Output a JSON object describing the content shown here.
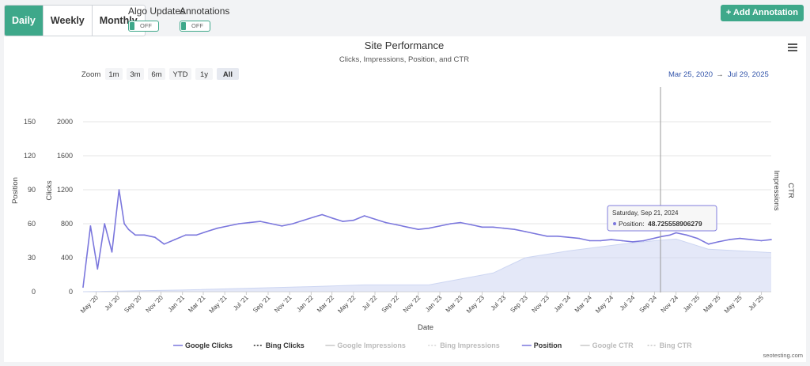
{
  "toolbar": {
    "periods": [
      "Daily",
      "Weekly",
      "Monthly"
    ],
    "active_period": "Daily",
    "algo_updates_label": "Algo Updates",
    "algo_updates_state": "OFF",
    "annotations_label": "Annotations",
    "annotations_state": "OFF",
    "add_annotation_label": "+ Add Annotation"
  },
  "range_selector": {
    "zoom_label": "Zoom",
    "buttons": [
      "1m",
      "3m",
      "6m",
      "YTD",
      "1y",
      "All"
    ],
    "active": "All",
    "from": "Mar 25, 2020",
    "arrow": "→",
    "to": "Jul 29, 2025"
  },
  "tooltip": {
    "date": "Saturday, Sep 21, 2024",
    "series_label": "Position:",
    "value": "48.7255589062 79"
  },
  "footer": {
    "credit": "seotesting.com"
  },
  "icons": {
    "menu": "hamburger-menu-icon"
  },
  "colors": {
    "accent": "#3ea88a",
    "position": "#7b77dd",
    "impressions": "#cdd6f2"
  },
  "chart_data": {
    "type": "line",
    "title": "Site Performance",
    "subtitle": "Clicks, Impressions, Position, and CTR",
    "xlabel": "Date",
    "x_ticks": [
      "May '20",
      "Jul '20",
      "Sep '20",
      "Nov '20",
      "Jan '21",
      "Mar '21",
      "May '21",
      "Jul '21",
      "Sep '21",
      "Nov '21",
      "Jan '22",
      "Mar '22",
      "May '22",
      "Jul '22",
      "Sep '22",
      "Nov '22",
      "Jan '23",
      "Mar '23",
      "May '23",
      "Jul '23",
      "Sep '23",
      "Nov '23",
      "Jan '24",
      "Mar '24",
      "May '24",
      "Jul '24",
      "Sep '24",
      "Nov '24",
      "Jan '25",
      "Mar '25",
      "May '25",
      "Jul '25"
    ],
    "x_range": [
      "2020-03-25",
      "2025-07-29"
    ],
    "y_axes": [
      {
        "label": "Position",
        "ticks": [
          0,
          30,
          60,
          90,
          120,
          150
        ],
        "range": [
          0,
          150
        ]
      },
      {
        "label": "Clicks",
        "ticks": [
          0,
          400,
          800,
          1200,
          1600,
          2000
        ],
        "range": [
          0,
          2000
        ]
      },
      {
        "label": "CTR",
        "ticks": [],
        "position": "right"
      },
      {
        "label": "Impressions",
        "ticks": [],
        "position": "right"
      }
    ],
    "legend": [
      "Google Clicks",
      "Bing Clicks",
      "Google Impressions",
      "Bing Impressions",
      "Position",
      "Google CTR",
      "Bing CTR"
    ],
    "legend_position": "bottom",
    "grid": true,
    "series": [
      {
        "name": "Position",
        "axis": "Position",
        "points": [
          [
            "2020-03-25",
            4
          ],
          [
            "2020-04-15",
            58
          ],
          [
            "2020-05-05",
            20
          ],
          [
            "2020-05-25",
            60
          ],
          [
            "2020-06-15",
            35
          ],
          [
            "2020-07-05",
            90
          ],
          [
            "2020-07-20",
            60
          ],
          [
            "2020-08-01",
            55
          ],
          [
            "2020-08-20",
            50
          ],
          [
            "2020-09-15",
            50
          ],
          [
            "2020-10-15",
            48
          ],
          [
            "2020-11-10",
            42
          ],
          [
            "2020-12-10",
            46
          ],
          [
            "2021-01-10",
            50
          ],
          [
            "2021-02-10",
            50
          ],
          [
            "2021-03-10",
            53
          ],
          [
            "2021-04-10",
            56
          ],
          [
            "2021-05-10",
            58
          ],
          [
            "2021-06-10",
            60
          ],
          [
            "2021-07-10",
            61
          ],
          [
            "2021-08-10",
            62
          ],
          [
            "2021-09-10",
            60
          ],
          [
            "2021-10-10",
            58
          ],
          [
            "2021-11-10",
            60
          ],
          [
            "2021-12-10",
            63
          ],
          [
            "2022-01-10",
            66
          ],
          [
            "2022-02-01",
            68
          ],
          [
            "2022-03-01",
            65
          ],
          [
            "2022-04-01",
            62
          ],
          [
            "2022-05-01",
            63
          ],
          [
            "2022-06-01",
            67
          ],
          [
            "2022-07-01",
            64
          ],
          [
            "2022-08-01",
            61
          ],
          [
            "2022-09-01",
            59
          ],
          [
            "2022-10-01",
            57
          ],
          [
            "2022-11-01",
            55
          ],
          [
            "2022-12-01",
            56
          ],
          [
            "2023-01-01",
            58
          ],
          [
            "2023-02-01",
            60
          ],
          [
            "2023-03-01",
            61
          ],
          [
            "2023-04-01",
            59
          ],
          [
            "2023-05-01",
            57
          ],
          [
            "2023-06-01",
            57
          ],
          [
            "2023-07-01",
            56
          ],
          [
            "2023-08-01",
            55
          ],
          [
            "2023-09-01",
            53
          ],
          [
            "2023-10-01",
            51
          ],
          [
            "2023-11-01",
            49
          ],
          [
            "2023-12-01",
            49
          ],
          [
            "2024-01-01",
            48
          ],
          [
            "2024-02-01",
            47
          ],
          [
            "2024-03-01",
            45
          ],
          [
            "2024-04-01",
            45
          ],
          [
            "2024-05-01",
            46
          ],
          [
            "2024-06-01",
            45
          ],
          [
            "2024-07-01",
            44
          ],
          [
            "2024-08-01",
            45
          ],
          [
            "2024-09-21",
            48.73
          ],
          [
            "2024-10-15",
            50
          ],
          [
            "2024-11-01",
            52
          ],
          [
            "2024-12-01",
            50
          ],
          [
            "2025-01-01",
            47
          ],
          [
            "2025-02-01",
            42
          ],
          [
            "2025-03-01",
            44
          ],
          [
            "2025-04-01",
            46
          ],
          [
            "2025-05-01",
            47
          ],
          [
            "2025-06-01",
            46
          ],
          [
            "2025-07-01",
            45
          ],
          [
            "2025-07-29",
            46
          ]
        ]
      },
      {
        "name": "Google Impressions",
        "axis": "Impressions",
        "points": [
          [
            "2020-03-25",
            0
          ],
          [
            "2021-01-01",
            10
          ],
          [
            "2022-01-01",
            30
          ],
          [
            "2022-06-01",
            40
          ],
          [
            "2022-12-01",
            40
          ],
          [
            "2023-06-01",
            110
          ],
          [
            "2023-09-01",
            200
          ],
          [
            "2024-01-01",
            240
          ],
          [
            "2024-06-01",
            280
          ],
          [
            "2024-09-01",
            300
          ],
          [
            "2024-11-01",
            310
          ],
          [
            "2025-02-01",
            250
          ],
          [
            "2025-05-01",
            240
          ],
          [
            "2025-07-29",
            230
          ]
        ]
      }
    ]
  }
}
